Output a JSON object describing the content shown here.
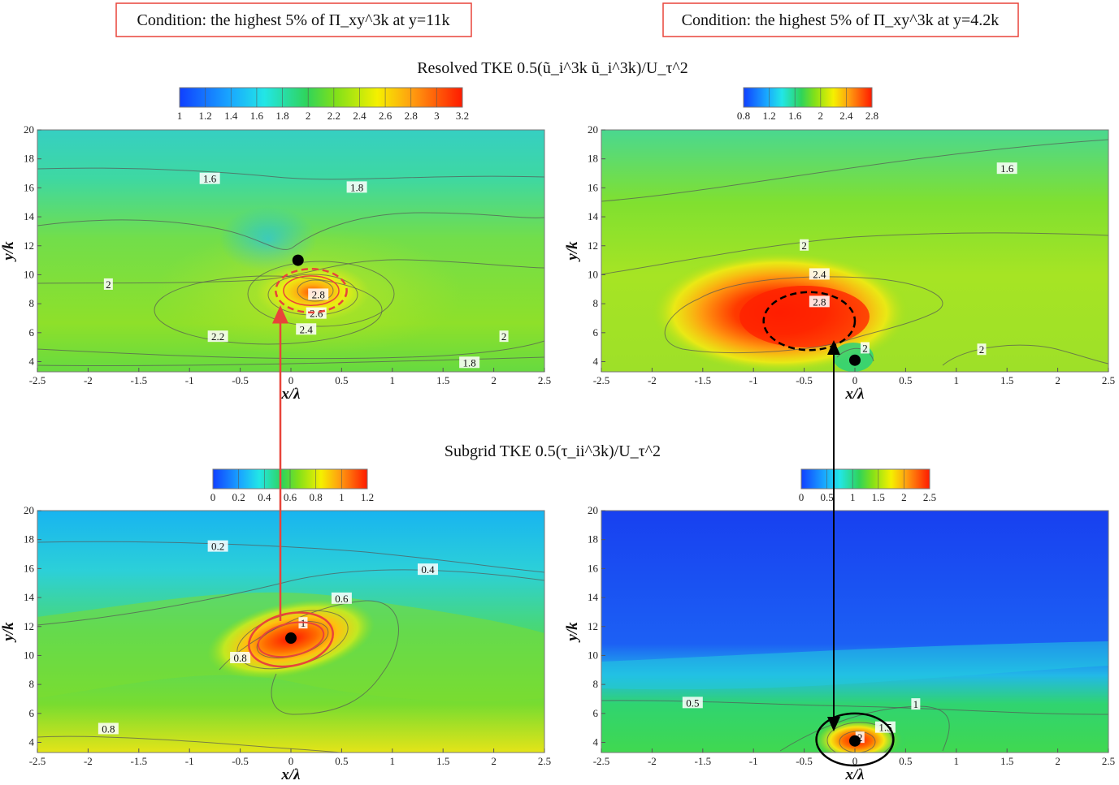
{
  "conditions": {
    "left": "Condition: the highest 5% of Π_xy^3k at y=11k",
    "right": "Condition: the highest 5% of Π_xy^3k at y=4.2k"
  },
  "section_titles": {
    "resolved": "Resolved TKE 0.5(ũ_i^3k ũ_i^3k)/U_τ^2",
    "subgrid": "Subgrid TKE 0.5(τ_ii^3k)/U_τ^2"
  },
  "axis_labels": {
    "x": "x/λ",
    "y": "y/k"
  },
  "chart_data": [
    {
      "id": "resolved-left",
      "type": "heatmap",
      "title": "",
      "xlabel": "x/λ",
      "ylabel": "y/k",
      "xlim": [
        -2.5,
        2.5
      ],
      "ylim": [
        3.3,
        20
      ],
      "xticks": [
        "-2.5",
        "-2",
        "-1.5",
        "-1",
        "-0.5",
        "0",
        "0.5",
        "1",
        "1.5",
        "2",
        "2.5"
      ],
      "yticks": [
        "4",
        "6",
        "8",
        "10",
        "12",
        "14",
        "16",
        "18",
        "20"
      ],
      "colorbar": {
        "min": 1,
        "max": 3.2,
        "ticks": [
          "1",
          "1.2",
          "1.4",
          "1.6",
          "1.8",
          "2",
          "2.2",
          "2.4",
          "2.6",
          "2.8",
          "3",
          "3.2"
        ]
      },
      "contour_labels": [
        {
          "text": "1.6",
          "x": -0.8,
          "y": 16.6
        },
        {
          "text": "1.8",
          "x": 0.65,
          "y": 16.0
        },
        {
          "text": "2",
          "x": -1.8,
          "y": 9.3
        },
        {
          "text": "2.8",
          "x": 0.27,
          "y": 8.6
        },
        {
          "text": "2.6",
          "x": 0.25,
          "y": 7.3
        },
        {
          "text": "2.4",
          "x": 0.15,
          "y": 6.2
        },
        {
          "text": "2.2",
          "x": -0.72,
          "y": 5.7
        },
        {
          "text": "2",
          "x": 2.1,
          "y": 5.7
        },
        {
          "text": "1.8",
          "x": 1.76,
          "y": 3.9
        }
      ],
      "peak": {
        "x": 0.25,
        "y": 9.0,
        "value": 2.9
      },
      "marker": {
        "x": 0.07,
        "y": 11.0
      },
      "highlight_ellipse": {
        "cx": 0.2,
        "cy": 8.9,
        "rx": 0.35,
        "ry": 1.5,
        "style": "dashed",
        "color": "#e8443a"
      }
    },
    {
      "id": "resolved-right",
      "type": "heatmap",
      "title": "",
      "xlabel": "x/λ",
      "ylabel": "y/k",
      "xlim": [
        -2.5,
        2.5
      ],
      "ylim": [
        3.3,
        20
      ],
      "xticks": [
        "-2.5",
        "-2",
        "-1.5",
        "-1",
        "-0.5",
        "0",
        "0.5",
        "1",
        "1.5",
        "2",
        "2.5"
      ],
      "yticks": [
        "4",
        "6",
        "8",
        "10",
        "12",
        "14",
        "16",
        "18",
        "20"
      ],
      "colorbar": {
        "min": 0.8,
        "max": 2.8,
        "ticks": [
          "0.8",
          "1.2",
          "1.6",
          "2",
          "2.4",
          "2.8"
        ]
      },
      "contour_labels": [
        {
          "text": "1.6",
          "x": 1.5,
          "y": 17.3
        },
        {
          "text": "2",
          "x": -0.5,
          "y": 12.0
        },
        {
          "text": "2.4",
          "x": -0.35,
          "y": 10.0
        },
        {
          "text": "2.8",
          "x": -0.35,
          "y": 8.1
        },
        {
          "text": "2",
          "x": 0.1,
          "y": 4.9
        },
        {
          "text": "2",
          "x": 1.25,
          "y": 4.8
        }
      ],
      "peak": {
        "x": -0.55,
        "y": 6.8,
        "value": 3.0
      },
      "marker": {
        "x": 0.0,
        "y": 4.1
      },
      "highlight_ellipse": {
        "cx": -0.45,
        "cy": 6.8,
        "rx": 0.45,
        "ry": 2.0,
        "style": "dashed",
        "color": "#000000"
      }
    },
    {
      "id": "subgrid-left",
      "type": "heatmap",
      "title": "",
      "xlabel": "x/λ",
      "ylabel": "y/k",
      "xlim": [
        -2.5,
        2.5
      ],
      "ylim": [
        3.3,
        20
      ],
      "xticks": [
        "-2.5",
        "-2",
        "-1.5",
        "-1",
        "-0.5",
        "0",
        "0.5",
        "1",
        "1.5",
        "2",
        "2.5"
      ],
      "yticks": [
        "4",
        "6",
        "8",
        "10",
        "12",
        "14",
        "16",
        "18",
        "20"
      ],
      "colorbar": {
        "min": 0,
        "max": 1.2,
        "ticks": [
          "0",
          "0.2",
          "0.4",
          "0.6",
          "0.8",
          "1",
          "1.2"
        ]
      },
      "contour_labels": [
        {
          "text": "0.2",
          "x": -0.72,
          "y": 17.5
        },
        {
          "text": "0.4",
          "x": 1.35,
          "y": 15.9
        },
        {
          "text": "0.6",
          "x": 0.5,
          "y": 13.9
        },
        {
          "text": "1",
          "x": 0.12,
          "y": 12.2
        },
        {
          "text": "0.8",
          "x": -0.5,
          "y": 9.8
        },
        {
          "text": "0.8",
          "x": -1.8,
          "y": 4.9
        }
      ],
      "peak": {
        "x": 0.0,
        "y": 11.2,
        "value": 1.25
      },
      "marker": {
        "x": 0.0,
        "y": 11.2
      },
      "highlight_ellipse": {
        "cx": 0.0,
        "cy": 11.1,
        "rx": 0.42,
        "ry": 1.8,
        "style": "solid",
        "color": "#e8443a"
      }
    },
    {
      "id": "subgrid-right",
      "type": "heatmap",
      "title": "",
      "xlabel": "x/λ",
      "ylabel": "y/k",
      "xlim": [
        -2.5,
        2.5
      ],
      "ylim": [
        3.3,
        20
      ],
      "xticks": [
        "-2.5",
        "-2",
        "-1.5",
        "-1",
        "-0.5",
        "0",
        "0.5",
        "1",
        "1.5",
        "2",
        "2.5"
      ],
      "yticks": [
        "4",
        "6",
        "8",
        "10",
        "12",
        "14",
        "16",
        "18",
        "20"
      ],
      "colorbar": {
        "min": 0,
        "max": 2.5,
        "ticks": [
          "0",
          "0.5",
          "1",
          "1.5",
          "2",
          "2.5"
        ]
      },
      "contour_labels": [
        {
          "text": "0.5",
          "x": -1.6,
          "y": 6.7
        },
        {
          "text": "1",
          "x": 0.6,
          "y": 6.6
        },
        {
          "text": "1.5",
          "x": 0.3,
          "y": 5.0
        },
        {
          "text": "2",
          "x": 0.05,
          "y": 4.3
        }
      ],
      "peak": {
        "x": 0.0,
        "y": 4.2,
        "value": 2.6
      },
      "marker": {
        "x": 0.0,
        "y": 4.1
      },
      "highlight_ellipse": {
        "cx": 0.0,
        "cy": 4.2,
        "rx": 0.38,
        "ry": 1.8,
        "style": "solid",
        "color": "#000000"
      }
    }
  ]
}
